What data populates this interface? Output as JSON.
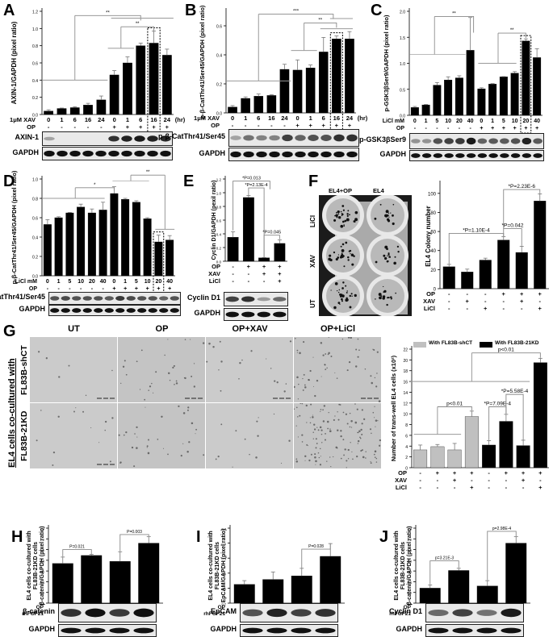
{
  "figure": {
    "panel_labels": [
      "A",
      "B",
      "C",
      "D",
      "E",
      "F",
      "G",
      "H",
      "I",
      "J"
    ]
  },
  "chart_data": [
    {
      "panel": "A",
      "type": "bar",
      "ylabel": "AXIN-1/GAPDH (pixel ratio)",
      "ylim": [
        0,
        1.2
      ],
      "yticks": [
        "0.0",
        "0.2",
        "0.4",
        "0.6",
        "0.8",
        "1.0",
        "1.2"
      ],
      "categories": [
        "0",
        "1",
        "6",
        "16",
        "24",
        "0",
        "1",
        "6",
        "16",
        "24"
      ],
      "x_unit": "(hr)",
      "conditions": [
        {
          "label": "1μM XAV",
          "values": [
            "0",
            "1",
            "6",
            "16",
            "24",
            "0",
            "1",
            "6",
            "16",
            "24"
          ]
        },
        {
          "label": "OP",
          "values": [
            "-",
            "-",
            "-",
            "-",
            "-",
            "+",
            "+",
            "+",
            "+",
            "+"
          ]
        }
      ],
      "values": [
        0.04,
        0.07,
        0.08,
        0.11,
        0.17,
        0.46,
        0.6,
        0.8,
        0.83,
        0.69
      ],
      "errors": [
        0.015,
        0.005,
        0.01,
        0.02,
        0.045,
        0.05,
        0.07,
        0.03,
        0.14,
        0.07
      ],
      "highlight_index": 8,
      "annotations": [
        "**",
        "**"
      ],
      "blots": [
        "AXIN-1",
        "GAPDH"
      ]
    },
    {
      "panel": "B",
      "type": "bar",
      "ylabel": "p-β-CatThr41/Ser45/GAPDH (pixel ratio)",
      "ylim": [
        0,
        0.7
      ],
      "yticks": [
        "0.0",
        "0.2",
        "0.4",
        "0.6"
      ],
      "categories": [
        "0",
        "1",
        "6",
        "16",
        "24",
        "0",
        "1",
        "6",
        "16",
        "24"
      ],
      "x_unit": "(hr)",
      "conditions": [
        {
          "label": "1μM XAV",
          "values": [
            "0",
            "1",
            "6",
            "16",
            "24",
            "0",
            "1",
            "6",
            "16",
            "24"
          ]
        },
        {
          "label": "OP",
          "values": [
            "-",
            "-",
            "-",
            "-",
            "-",
            "+",
            "+",
            "+",
            "+",
            "+"
          ]
        }
      ],
      "values": [
        0.04,
        0.1,
        0.115,
        0.12,
        0.3,
        0.295,
        0.31,
        0.42,
        0.51,
        0.51
      ],
      "errors": [
        0.01,
        0.01,
        0.015,
        0.005,
        0.035,
        0.07,
        0.02,
        0.1,
        0.02,
        0.05
      ],
      "highlight_index": 8,
      "annotations": [
        "***",
        "**"
      ],
      "blots": [
        "p-β-CatThr41/Ser45",
        "GAPDH"
      ]
    },
    {
      "panel": "C",
      "type": "bar",
      "ylabel": "p-GSK3βSer9/GAPDH (pixel ratio)",
      "ylim": [
        0,
        2.0
      ],
      "yticks": [
        "0.0",
        "0.5",
        "1.0",
        "1.5",
        "2.0"
      ],
      "categories": [
        "0",
        "1",
        "5",
        "10",
        "20",
        "40",
        "0",
        "1",
        "5",
        "10",
        "20",
        "40"
      ],
      "conditions": [
        {
          "label": "LiCl  mM",
          "values": [
            "0",
            "1",
            "5",
            "10",
            "20",
            "40",
            "0",
            "1",
            "5",
            "10",
            "20",
            "40"
          ]
        },
        {
          "label": "OP",
          "values": [
            "-",
            "-",
            "-",
            "-",
            "-",
            "-",
            "+",
            "+",
            "+",
            "+",
            "+",
            "+"
          ]
        }
      ],
      "values": [
        0.15,
        0.2,
        0.58,
        0.68,
        0.72,
        1.25,
        0.51,
        0.6,
        0.74,
        0.81,
        1.43,
        1.11
      ],
      "errors": [
        0.02,
        0.01,
        0.05,
        0.06,
        0.04,
        0.63,
        0.02,
        0.01,
        0.005,
        0.03,
        0.04,
        0.17
      ],
      "highlight_index": 10,
      "annotations": [
        "**",
        "**"
      ],
      "blots": [
        "p-GSK3βSer9",
        "GAPDH"
      ]
    },
    {
      "panel": "D",
      "type": "bar",
      "ylabel": "p-β-CatThr41/Ser45/GAPDH (pixel ratio)",
      "ylim": [
        0,
        1.0
      ],
      "yticks": [
        "0.0",
        "0.2",
        "0.4",
        "0.6",
        "0.8",
        "1.0"
      ],
      "categories": [
        "0",
        "1",
        "5",
        "10",
        "20",
        "40",
        "0",
        "1",
        "5",
        "10",
        "20",
        "40"
      ],
      "conditions": [
        {
          "label": "LiCl  mM",
          "values": [
            "0",
            "1",
            "5",
            "10",
            "20",
            "40",
            "0",
            "1",
            "5",
            "10",
            "20",
            "40"
          ]
        },
        {
          "label": "OP",
          "values": [
            "-",
            "-",
            "-",
            "-",
            "-",
            "-",
            "+",
            "+",
            "+",
            "+",
            "+",
            "+"
          ]
        }
      ],
      "values": [
        0.53,
        0.6,
        0.65,
        0.71,
        0.65,
        0.68,
        0.85,
        0.79,
        0.76,
        0.59,
        0.35,
        0.37
      ],
      "errors": [
        0.05,
        0.01,
        0.005,
        0.03,
        0.04,
        0.08,
        0.07,
        0.01,
        0.015,
        0.01,
        0.07,
        0.045
      ],
      "highlight_index": 10,
      "annotations": [
        "*",
        "**"
      ],
      "blots": [
        "p-β-CatThr41/Ser45",
        "GAPDH"
      ]
    },
    {
      "panel": "E",
      "type": "bar",
      "ylabel": "Cyclin D1/GAPDH (pexil ratio)",
      "ylim": [
        0,
        1.2
      ],
      "yticks": [
        "0.0",
        "0.2",
        "0.4",
        "0.6",
        "0.8",
        "1.0",
        "1.2"
      ],
      "categories": [
        "1",
        "2",
        "3",
        "4"
      ],
      "conditions": [
        {
          "label": "OP",
          "values": [
            "-",
            "+",
            "+",
            "+"
          ]
        },
        {
          "label": "XAV",
          "values": [
            "-",
            "-",
            "+",
            "+"
          ]
        },
        {
          "label": "LiCl",
          "values": [
            "-",
            "-",
            "-",
            "+"
          ]
        }
      ],
      "values": [
        0.35,
        0.93,
        0.05,
        0.26
      ],
      "errors": [
        0.08,
        0.03,
        0.005,
        0.05
      ],
      "annotations": [
        "*P=0.013",
        "*P=2.13E-4",
        "*P=0.045"
      ],
      "blots": [
        "Cyclin D1",
        "GAPDH"
      ]
    },
    {
      "panel": "F",
      "type": "bar",
      "ylabel": "EL4 Colony number",
      "ylim": [
        0,
        110
      ],
      "yticks": [
        "0",
        "20",
        "40",
        "60",
        "80",
        "100"
      ],
      "categories": [
        "1",
        "2",
        "3",
        "4",
        "5",
        "6"
      ],
      "conditions": [
        {
          "label": "OP",
          "values": [
            "-",
            "-",
            "-",
            "+",
            "+",
            "+"
          ]
        },
        {
          "label": "XAV",
          "values": [
            "-",
            "+",
            "-",
            "-",
            "+",
            "-"
          ]
        },
        {
          "label": "LiCl",
          "values": [
            "-",
            "-",
            "+",
            "-",
            "-",
            "+"
          ]
        }
      ],
      "values": [
        23,
        17.5,
        30,
        51,
        38,
        92
      ],
      "errors": [
        2.5,
        3,
        2,
        3.5,
        6.5,
        7.5
      ],
      "annotations": [
        "*P=1.10E-4",
        "*P=0.042",
        "*P=2.23E-6"
      ],
      "image_columns": [
        "EL4+OP",
        "EL4"
      ],
      "image_rows": [
        "LiCl",
        "XAV",
        "UT"
      ]
    },
    {
      "panel": "G",
      "type": "bar",
      "ylabel": "Number of trans-well EL4 cells (x10²)",
      "ylim": [
        0,
        22
      ],
      "yticks": [
        "0",
        "2",
        "4",
        "6",
        "8",
        "10",
        "12",
        "14",
        "16",
        "18",
        "20",
        "22"
      ],
      "categories": [
        "1",
        "2",
        "3",
        "4",
        "5",
        "6",
        "7",
        "8"
      ],
      "conditions": [
        {
          "label": "OP",
          "values": [
            "-",
            "+",
            "+",
            "+",
            "-",
            "+",
            "+",
            "+"
          ]
        },
        {
          "label": "XAV",
          "values": [
            "-",
            "-",
            "+",
            "-",
            "-",
            "-",
            "+",
            "-"
          ]
        },
        {
          "label": "LiCl",
          "values": [
            "-",
            "-",
            "-",
            "+",
            "-",
            "-",
            "-",
            "+"
          ]
        }
      ],
      "series": [
        {
          "name": "With FL83B-shCT",
          "color": "#c0c0c0",
          "indices": [
            0,
            1,
            2,
            3
          ],
          "values": [
            3.3,
            3.9,
            3.3,
            9.5
          ],
          "errors": [
            0.9,
            0.4,
            1.2,
            1.0
          ]
        },
        {
          "name": "With FL83B-21KD",
          "color": "#000000",
          "indices": [
            4,
            5,
            6,
            7
          ],
          "values": [
            4.2,
            8.6,
            4.1,
            19.5
          ],
          "errors": [
            0.8,
            1.3,
            1.0,
            0.8
          ]
        }
      ],
      "annotations": [
        "p<0.01",
        "p<0.01",
        "*P=7.09E-4",
        "*P=5.58E-4"
      ],
      "image_columns": [
        "UT",
        "OP",
        "OP+XAV",
        "OP+LiCl"
      ],
      "image_rows": [
        "FL83B-shCT",
        "FL83B-21KD"
      ],
      "image_row_group": "EL4 cells co-cultured with"
    },
    {
      "panel": "H",
      "type": "bar",
      "ylabel": "EL4 cells co-cultured with FL83B-21KD cells β-catenin/GAPDH (pixel ratio)",
      "ylim": [
        0,
        1.4
      ],
      "yticks": [
        "0.0",
        "0.2",
        "0.4",
        "0.6",
        "0.8",
        "1.0",
        "1.2",
        "1.4"
      ],
      "categories": [
        "1",
        "2",
        "3",
        "4"
      ],
      "conditions": [
        {
          "label": "OP",
          "values": [
            "-",
            "-",
            "+",
            "+"
          ]
        },
        {
          "label": "rhFGF21",
          "values": [
            "+",
            "-",
            "+",
            "-"
          ]
        }
      ],
      "values": [
        0.74,
        0.89,
        0.78,
        1.12
      ],
      "errors": [
        0.12,
        0.02,
        0.18,
        0.12
      ],
      "annotations": [
        "P=0.021",
        "P=0.003"
      ],
      "blots": [
        "β-catenin",
        "GAPDH"
      ]
    },
    {
      "panel": "I",
      "type": "bar",
      "ylabel": "EL4 cells co-cultured with FL83B-21KD cells EpCAM/GAPDH (pixel ratio)",
      "ylim": [
        0.2,
        0.7
      ],
      "yticks": [
        "0.2",
        "0.3",
        "0.4",
        "0.5",
        "0.6",
        "0.7"
      ],
      "categories": [
        "1",
        "2",
        "3",
        "4"
      ],
      "conditions": [
        {
          "label": "OP",
          "values": [
            "-",
            "-",
            "+",
            "+"
          ]
        },
        {
          "label": "rhFGF21",
          "values": [
            "+",
            "-",
            "+",
            "-"
          ]
        }
      ],
      "values": [
        0.325,
        0.358,
        0.382,
        0.512
      ],
      "errors": [
        0.025,
        0.05,
        0.05,
        0.085
      ],
      "annotations": [
        "P=0.028"
      ],
      "blots": [
        "EpCAM",
        "GAPDH"
      ]
    },
    {
      "panel": "J",
      "type": "bar",
      "ylabel": "EL4 cells co-cultured with FL83B-21KD cells β-catenin/GAPDH (pixel ratio)",
      "ylim": [
        0,
        1.4
      ],
      "yticks": [
        "0.0",
        "0.2",
        "0.4",
        "0.6",
        "0.8",
        "1.0",
        "1.2",
        "1.4"
      ],
      "categories": [
        "1",
        "2",
        "3",
        "4"
      ],
      "conditions": [
        {
          "label": "OP",
          "values": [
            "-",
            "-",
            "+",
            "+"
          ]
        },
        {
          "label": "rhFGF21",
          "values": [
            "+",
            "-",
            "+",
            "-"
          ]
        }
      ],
      "values": [
        0.28,
        0.61,
        0.32,
        1.12
      ],
      "errors": [
        0.06,
        0.04,
        0.1,
        0.12
      ],
      "annotations": [
        "p=3.21E-3",
        "p=2.98E-4"
      ],
      "blots": [
        "Cyclin D1",
        "GAPDH"
      ]
    }
  ]
}
